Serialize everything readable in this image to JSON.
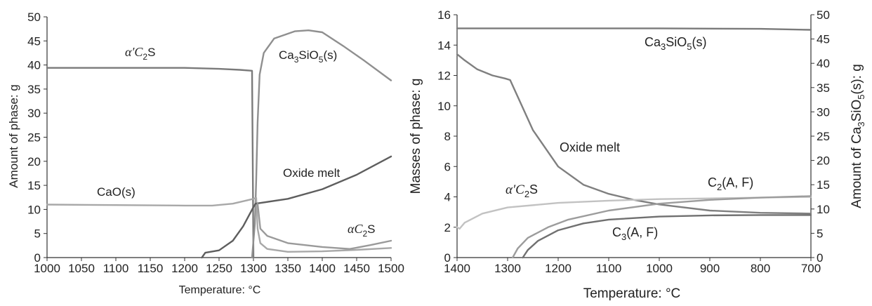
{
  "chart_data": [
    {
      "type": "line",
      "xlabel": "Temperature: °C",
      "ylabel": "Amount of phase: g",
      "xlim": [
        1000,
        1500
      ],
      "ylim": [
        0,
        50
      ],
      "x_ticks": [
        "1000",
        "1050",
        "1100",
        "1150",
        "1200",
        "1250",
        "1300",
        "1350",
        "1400",
        "1450",
        "1500"
      ],
      "y_ticks": [
        "0",
        "5",
        "10",
        "15",
        "20",
        "25",
        "30",
        "35",
        "40",
        "45",
        "50"
      ],
      "grid": false,
      "series": [
        {
          "name": "α′C2S",
          "color": "#7a7a7a",
          "points": [
            [
              1000,
              39.4
            ],
            [
              1100,
              39.4
            ],
            [
              1200,
              39.4
            ],
            [
              1250,
              39.2
            ],
            [
              1280,
              39.0
            ],
            [
              1298,
              38.8
            ],
            [
              1300,
              0
            ]
          ]
        },
        {
          "name": "Ca3SiO5(s)",
          "color": "#8f8f8f",
          "points": [
            [
              1298,
              0
            ],
            [
              1302,
              7
            ],
            [
              1304,
              16
            ],
            [
              1306,
              28
            ],
            [
              1309,
              38
            ],
            [
              1315,
              42.5
            ],
            [
              1330,
              45.5
            ],
            [
              1360,
              47
            ],
            [
              1380,
              47.2
            ],
            [
              1400,
              46.8
            ],
            [
              1430,
              44
            ],
            [
              1460,
              41
            ],
            [
              1500,
              36.8
            ]
          ]
        },
        {
          "name": "CaO(s)",
          "color": "#a8a8a8",
          "points": [
            [
              1000,
              11
            ],
            [
              1100,
              10.9
            ],
            [
              1200,
              10.8
            ],
            [
              1240,
              10.8
            ],
            [
              1270,
              11.2
            ],
            [
              1300,
              12.2
            ],
            [
              1304,
              12.4
            ],
            [
              1306,
              6
            ],
            [
              1310,
              3
            ],
            [
              1320,
              1.8
            ],
            [
              1350,
              1.2
            ],
            [
              1400,
              1.3
            ],
            [
              1450,
              1.6
            ],
            [
              1500,
              2.0
            ]
          ]
        },
        {
          "name": "Oxide melt",
          "color": "#5e5e5e",
          "points": [
            [
              1225,
              0
            ],
            [
              1230,
              1.0
            ],
            [
              1250,
              1.5
            ],
            [
              1270,
              3.5
            ],
            [
              1285,
              6.5
            ],
            [
              1300,
              10.5
            ],
            [
              1303,
              11.2
            ],
            [
              1350,
              12.2
            ],
            [
              1400,
              14.2
            ],
            [
              1450,
              17.2
            ],
            [
              1500,
              21
            ]
          ]
        },
        {
          "name": "αC2S",
          "color": "#9a9a9a",
          "points": [
            [
              1306,
              11.2
            ],
            [
              1310,
              6
            ],
            [
              1320,
              4.5
            ],
            [
              1350,
              3.0
            ],
            [
              1400,
              2.2
            ],
            [
              1440,
              1.8
            ],
            [
              1470,
              2.6
            ],
            [
              1500,
              3.5
            ]
          ]
        }
      ],
      "annotations": {
        "a2s_pre": "α′C",
        "a2s_sub": "2",
        "a2s_post": "S",
        "c3s_pre": "Ca",
        "c3s_sub1": "3",
        "c3s_mid": "SiO",
        "c3s_sub2": "5",
        "c3s_post": "(s)",
        "melt": "Oxide melt",
        "cao": "CaO(s)",
        "ac2s_pre": "αC",
        "ac2s_sub": "2",
        "ac2s_post": "S"
      }
    },
    {
      "type": "line",
      "xlabel": "Temperature: °C",
      "ylabel": "Masses of phase: g",
      "y2label": "Amount of Ca3SiO5(s): g",
      "xlim": [
        1400,
        700
      ],
      "ylim": [
        0,
        16
      ],
      "y2lim": [
        0,
        50
      ],
      "x_ticks": [
        "1400",
        "1300",
        "1200",
        "1100",
        "1000",
        "900",
        "800",
        "700"
      ],
      "y_ticks": [
        "0",
        "2",
        "4",
        "6",
        "8",
        "10",
        "12",
        "14",
        "16"
      ],
      "y2_ticks": [
        "0",
        "5",
        "10",
        "15",
        "20",
        "25",
        "30",
        "35",
        "40",
        "45",
        "50"
      ],
      "grid": false,
      "series": [
        {
          "name": "Ca3SiO5(s)",
          "axis": "right",
          "color": "#7a7a7a",
          "points": [
            [
              1400,
              47.2
            ],
            [
              1200,
              47.2
            ],
            [
              1000,
              47.2
            ],
            [
              800,
              47.1
            ],
            [
              700,
              46.9
            ]
          ]
        },
        {
          "name": "Oxide melt",
          "color": "#7f7f7f",
          "points": [
            [
              1400,
              13.4
            ],
            [
              1385,
              13.0
            ],
            [
              1360,
              12.4
            ],
            [
              1330,
              12.0
            ],
            [
              1305,
              11.8
            ],
            [
              1295,
              11.7
            ],
            [
              1280,
              10.6
            ],
            [
              1250,
              8.4
            ],
            [
              1200,
              6.0
            ],
            [
              1150,
              4.8
            ],
            [
              1100,
              4.2
            ],
            [
              1050,
              3.8
            ],
            [
              1000,
              3.5
            ],
            [
              900,
              3.1
            ],
            [
              800,
              2.95
            ],
            [
              700,
              2.9
            ]
          ]
        },
        {
          "name": "α′C2S",
          "color": "#c2c2c2",
          "points": [
            [
              1400,
              2.0
            ],
            [
              1395,
              1.9
            ],
            [
              1385,
              2.3
            ],
            [
              1350,
              2.9
            ],
            [
              1300,
              3.3
            ],
            [
              1200,
              3.6
            ],
            [
              1100,
              3.75
            ],
            [
              1000,
              3.85
            ],
            [
              900,
              3.9
            ],
            [
              800,
              3.95
            ],
            [
              700,
              4.0
            ]
          ]
        },
        {
          "name": "C2(A, F)",
          "color": "#9c9c9c",
          "points": [
            [
              1290,
              0
            ],
            [
              1280,
              0.6
            ],
            [
              1260,
              1.3
            ],
            [
              1220,
              2.0
            ],
            [
              1180,
              2.5
            ],
            [
              1100,
              3.1
            ],
            [
              1000,
              3.55
            ],
            [
              900,
              3.8
            ],
            [
              800,
              3.95
            ],
            [
              700,
              4.05
            ]
          ]
        },
        {
          "name": "C3(A, F)",
          "color": "#707070",
          "points": [
            [
              1270,
              0
            ],
            [
              1260,
              0.5
            ],
            [
              1240,
              1.1
            ],
            [
              1200,
              1.8
            ],
            [
              1150,
              2.25
            ],
            [
              1100,
              2.5
            ],
            [
              1000,
              2.7
            ],
            [
              900,
              2.78
            ],
            [
              800,
              2.8
            ],
            [
              700,
              2.8
            ]
          ]
        }
      ],
      "annotations": {
        "c3s_pre": "Ca",
        "c3s_sub1": "3",
        "c3s_mid": "SiO",
        "c3s_sub2": "5",
        "c3s_post": "(s)",
        "melt": "Oxide melt",
        "a2s_pre": "α′C",
        "a2s_sub": "2",
        "a2s_post": "S",
        "c2af_pre": "C",
        "c2af_sub": "2",
        "c2af_post": "(A, F)",
        "c3af_pre": "C",
        "c3af_sub": "3",
        "c3af_post": "(A, F)"
      },
      "y2label_parts": {
        "pre": "Amount of Ca",
        "sub1": "3",
        "mid": "SiO",
        "sub2": "5",
        "post": "(s): g"
      }
    }
  ]
}
